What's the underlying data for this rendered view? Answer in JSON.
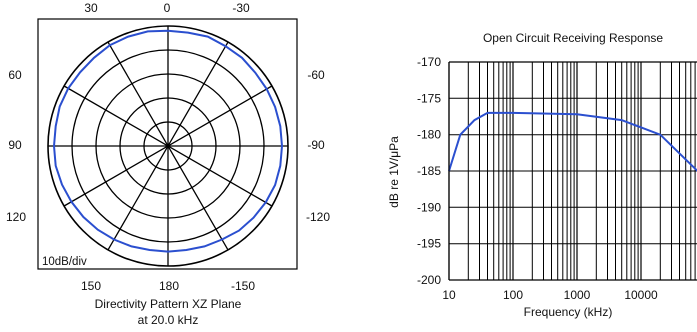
{
  "chart_data": [
    {
      "type": "polar",
      "title": "Directivity Pattern XZ Plane",
      "subtitle": "at 20.0 kHz",
      "scale_label": "10dB/div",
      "angle_labels": [
        "30",
        "0",
        "-30",
        "60",
        "-60",
        "90",
        "-90",
        "120",
        "-120",
        "150",
        "180",
        "-150"
      ],
      "rings": 5,
      "series": [
        {
          "color": "#2b4fcf",
          "theta_deg": [
            0,
            10,
            20,
            30,
            40,
            50,
            60,
            70,
            80,
            90,
            100,
            110,
            120,
            130,
            140,
            150,
            160,
            170,
            180,
            190,
            200,
            210,
            220,
            230,
            240,
            250,
            260,
            270,
            280,
            290,
            300,
            310,
            320,
            330,
            340,
            350
          ],
          "level_db": [
            -2,
            -1.5,
            -1.5,
            -1.5,
            -2,
            -2.2,
            -2,
            -2,
            -2.5,
            -2.5,
            -2.5,
            -3,
            -3.5,
            -4,
            -4.5,
            -5,
            -5.5,
            -6,
            -6,
            -6,
            -5.5,
            -5,
            -4,
            -3.5,
            -3,
            -2.5,
            -2.5,
            -2.5,
            -2.5,
            -2.5,
            -2.5,
            -2.5,
            -2,
            -2,
            -1.5,
            -2
          ]
        }
      ]
    },
    {
      "type": "line",
      "title": "Open Circuit Receiving Response",
      "xlabel": "Frequency (kHz)",
      "ylabel": "dB re 1V/μPa",
      "xscale": "log",
      "xticks": [
        "10",
        "100",
        "1000",
        "10000"
      ],
      "yticks": [
        "-170",
        "-175",
        "-180",
        "-185",
        "-190",
        "-195",
        "-200"
      ],
      "ylim": [
        -200,
        -170
      ],
      "series": [
        {
          "color": "#2b4fcf",
          "x": [
            10,
            15,
            25,
            40,
            100,
            1000,
            5000,
            20000,
            100000
          ],
          "y": [
            -185,
            -180,
            -178,
            -177,
            -177,
            -177.2,
            -178,
            -180,
            -186
          ]
        }
      ]
    }
  ]
}
